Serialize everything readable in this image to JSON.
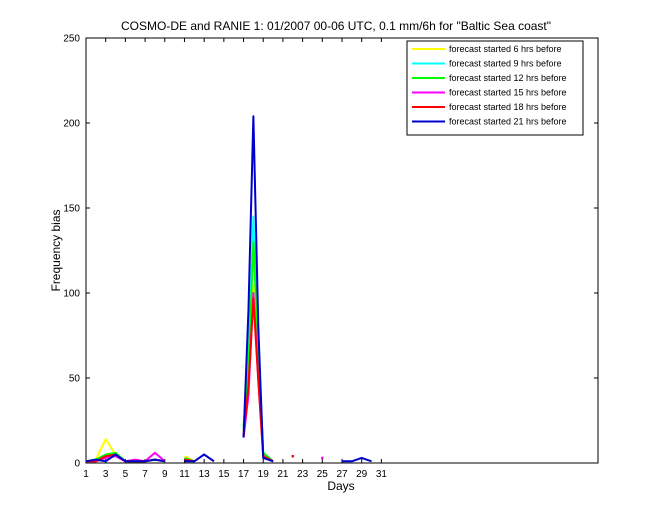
{
  "chart_data": {
    "type": "line",
    "title": "COSMO-DE and RANIE 1: 01/2007 00-06 UTC, 0.1 mm/6h for \"Baltic Sea coast\"",
    "xlabel": "Days",
    "ylabel": "Frequency bias",
    "xlim": [
      1,
      53
    ],
    "ylim": [
      0,
      250
    ],
    "xticks": [
      1,
      3,
      5,
      7,
      9,
      11,
      13,
      15,
      17,
      19,
      21,
      23,
      25,
      27,
      29,
      31
    ],
    "yticks": [
      0,
      50,
      100,
      150,
      200,
      250
    ],
    "grid": false,
    "legend_position": "top-right",
    "series": [
      {
        "name": "forecast started 6 hrs before",
        "color": "#ffff00",
        "segments": [
          [
            [
              1,
              1
            ],
            [
              2,
              2
            ],
            [
              3,
              14
            ],
            [
              4,
              5
            ],
            [
              5,
              1
            ],
            [
              6,
              1
            ],
            [
              7,
              1
            ],
            [
              8,
              2
            ],
            [
              9,
              1
            ]
          ],
          [
            [
              11,
              4
            ],
            [
              12,
              1
            ]
          ],
          [
            [
              17,
              18
            ],
            [
              17.5,
              45
            ],
            [
              18,
              105
            ],
            [
              18.5,
              55
            ],
            [
              19,
              5
            ],
            [
              20,
              1
            ]
          ]
        ]
      },
      {
        "name": "forecast started 9 hrs before",
        "color": "#00ffff",
        "segments": [
          [
            [
              1,
              1
            ],
            [
              2,
              2
            ],
            [
              3,
              5
            ],
            [
              4,
              5
            ],
            [
              5,
              1
            ],
            [
              6,
              1
            ],
            [
              7,
              1
            ],
            [
              8,
              2
            ],
            [
              9,
              1
            ]
          ],
          [
            [
              11,
              2
            ],
            [
              12,
              1
            ]
          ],
          [
            [
              17,
              20
            ],
            [
              17.5,
              60
            ],
            [
              18,
              145
            ],
            [
              18.5,
              70
            ],
            [
              19,
              6
            ],
            [
              20,
              1
            ]
          ]
        ]
      },
      {
        "name": "forecast started 12 hrs before",
        "color": "#00ff00",
        "segments": [
          [
            [
              1,
              1
            ],
            [
              2,
              2
            ],
            [
              3,
              5
            ],
            [
              4,
              6
            ],
            [
              5,
              1
            ],
            [
              6,
              1
            ],
            [
              7,
              1
            ],
            [
              8,
              2
            ],
            [
              9,
              1
            ]
          ],
          [
            [
              11,
              3
            ],
            [
              12,
              1
            ]
          ],
          [
            [
              17,
              22
            ],
            [
              17.5,
              55
            ],
            [
              18,
              130
            ],
            [
              18.5,
              65
            ],
            [
              19,
              6
            ],
            [
              20,
              1
            ]
          ]
        ]
      },
      {
        "name": "forecast started 15 hrs before",
        "color": "#ff00ff",
        "segments": [
          [
            [
              1,
              1
            ],
            [
              2,
              1
            ],
            [
              3,
              3
            ],
            [
              4,
              4
            ],
            [
              5,
              1
            ],
            [
              6,
              2
            ],
            [
              7,
              1
            ],
            [
              8,
              6
            ],
            [
              9,
              1
            ]
          ],
          [
            [
              11,
              2
            ],
            [
              12,
              1
            ]
          ],
          [
            [
              17,
              15
            ],
            [
              17.5,
              40
            ],
            [
              18,
              100
            ],
            [
              18.5,
              50
            ],
            [
              19,
              4
            ],
            [
              20,
              1
            ]
          ],
          [
            [
              25,
              3
            ]
          ]
        ]
      },
      {
        "name": "forecast started 18 hrs before",
        "color": "#ff0000",
        "segments": [
          [
            [
              1,
              1
            ],
            [
              2,
              1
            ],
            [
              3,
              4
            ],
            [
              4,
              5
            ],
            [
              5,
              1
            ],
            [
              6,
              1
            ],
            [
              7,
              1
            ],
            [
              8,
              2
            ],
            [
              9,
              1
            ]
          ],
          [
            [
              11,
              2
            ],
            [
              12,
              1
            ]
          ],
          [
            [
              17,
              15
            ],
            [
              17.5,
              45
            ],
            [
              18,
              97
            ],
            [
              18.5,
              48
            ],
            [
              19,
              4
            ],
            [
              20,
              1
            ]
          ],
          [
            [
              22,
              4
            ]
          ]
        ]
      },
      {
        "name": "forecast started 21 hrs before",
        "color": "#0000cc",
        "segments": [
          [
            [
              1,
              1
            ],
            [
              2,
              2
            ],
            [
              3,
              1
            ],
            [
              4,
              5
            ],
            [
              5,
              1
            ],
            [
              6,
              1
            ],
            [
              7,
              1
            ],
            [
              8,
              2
            ],
            [
              9,
              1
            ]
          ],
          [
            [
              11,
              1
            ],
            [
              12,
              1
            ],
            [
              13,
              5
            ],
            [
              14,
              1
            ]
          ],
          [
            [
              17,
              15
            ],
            [
              17.5,
              90
            ],
            [
              18,
              204
            ],
            [
              18.5,
              80
            ],
            [
              19,
              3
            ],
            [
              20,
              1
            ]
          ],
          [
            [
              27,
              1
            ],
            [
              28,
              1
            ],
            [
              29,
              3
            ],
            [
              30,
              1
            ]
          ]
        ]
      }
    ]
  }
}
